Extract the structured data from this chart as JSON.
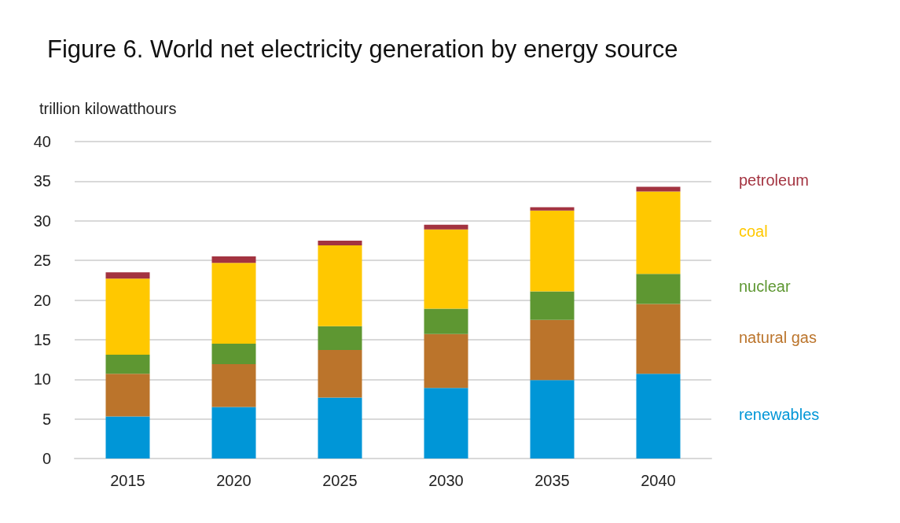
{
  "chart_data": {
    "type": "bar",
    "title": "Figure 6. World net electricity generation by energy source",
    "ylabel": "trillion kilowatthours",
    "categories": [
      "2015",
      "2020",
      "2025",
      "2030",
      "2035",
      "2040"
    ],
    "stacked": true,
    "ylim": [
      0,
      40
    ],
    "yticks": [
      0,
      5,
      10,
      15,
      20,
      25,
      30,
      35,
      40
    ],
    "grid": "y",
    "legend": "right",
    "series": [
      {
        "name": "renewables",
        "color": "#0096d7",
        "values": [
          5.3,
          6.5,
          7.7,
          8.9,
          9.9,
          10.7
        ]
      },
      {
        "name": "natural gas",
        "color": "#bb742b",
        "values": [
          5.4,
          5.4,
          6.0,
          6.8,
          7.6,
          8.8
        ]
      },
      {
        "name": "nuclear",
        "color": "#5e9732",
        "values": [
          2.4,
          2.6,
          3.0,
          3.2,
          3.6,
          3.8
        ]
      },
      {
        "name": "coal",
        "color": "#ffc800",
        "values": [
          9.6,
          10.2,
          10.2,
          10.0,
          10.2,
          10.4
        ]
      },
      {
        "name": "petroleum",
        "color": "#a33340",
        "values": [
          0.8,
          0.8,
          0.6,
          0.6,
          0.4,
          0.6
        ]
      }
    ]
  }
}
